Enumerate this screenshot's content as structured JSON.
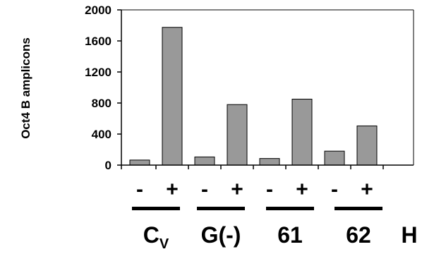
{
  "chart_data": {
    "type": "bar",
    "ylabel": "Oct4 B amplicons",
    "ylim": [
      0,
      2000
    ],
    "yticks": [
      "0",
      "400",
      "800",
      "1200",
      "1600",
      "2000"
    ],
    "grid": false,
    "categories": [
      "-",
      "+",
      "-",
      "+",
      "-",
      "+",
      "-",
      "+"
    ],
    "values": [
      65,
      1775,
      105,
      780,
      85,
      850,
      180,
      505
    ],
    "groups": [
      {
        "label": "C",
        "sub": "V"
      },
      {
        "label": "G(-)",
        "sub": ""
      },
      {
        "label": "61",
        "sub": ""
      },
      {
        "label": "62",
        "sub": ""
      },
      {
        "label": "H",
        "sub": ""
      }
    ],
    "bar_color": "#999999"
  }
}
